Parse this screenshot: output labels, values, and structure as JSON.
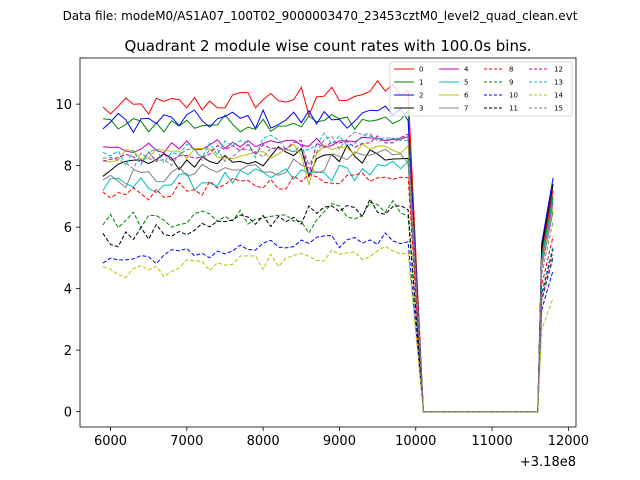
{
  "chart_data": {
    "type": "line",
    "suptitle": "Data file: modeM0/AS1A07_100T02_9000003470_23453cztM0_level2_quad_clean.evt",
    "title": "Quadrant 2 module wise count rates with 100.0s bins.",
    "xlabel": "",
    "ylabel": "",
    "x_offset_text": "+3.18e8",
    "xlim": [
      5600,
      12100
    ],
    "ylim": [
      -0.5,
      11.5
    ],
    "x_ticks": [
      6000,
      7000,
      8000,
      9000,
      10000,
      11000,
      12000
    ],
    "x_tick_labels": [
      "6000",
      "7000",
      "8000",
      "9000",
      "10000",
      "11000",
      "12000"
    ],
    "y_ticks": [
      0,
      2,
      4,
      6,
      8,
      10
    ],
    "y_tick_labels": [
      "0",
      "2",
      "4",
      "6",
      "8",
      "10"
    ],
    "legend_position": "top-right",
    "legend_columns": 4,
    "x_segments": [
      [
        5900,
        9900
      ],
      [
        10100,
        11600
      ],
      [
        11650,
        11800
      ]
    ],
    "series": [
      {
        "name": "0",
        "color": "#ff0000",
        "dash": "solid",
        "base": 9.8,
        "noise": 0.35,
        "trend": 0.7,
        "end": 7.2
      },
      {
        "name": "1",
        "color": "#008000",
        "dash": "solid",
        "base": 9.3,
        "noise": 0.3,
        "trend": 0.2,
        "end": 7.0
      },
      {
        "name": "2",
        "color": "#0000ff",
        "dash": "solid",
        "base": 9.4,
        "noise": 0.35,
        "trend": 0.2,
        "end": 7.6
      },
      {
        "name": "3",
        "color": "#000000",
        "dash": "solid",
        "base": 8.0,
        "noise": 0.35,
        "trend": 0.5,
        "end": 7.4
      },
      {
        "name": "4",
        "color": "#bf00bf",
        "dash": "solid",
        "base": 8.5,
        "noise": 0.2,
        "trend": 0.4,
        "end": 6.8
      },
      {
        "name": "5",
        "color": "#00bfbf",
        "dash": "solid",
        "base": 7.3,
        "noise": 0.3,
        "trend": 0.6,
        "end": 6.9
      },
      {
        "name": "6",
        "color": "#bfbf00",
        "dash": "solid",
        "base": 8.3,
        "noise": 0.25,
        "trend": 0.3,
        "end": 6.6
      },
      {
        "name": "7",
        "color": "#808080",
        "dash": "solid",
        "base": 7.5,
        "noise": 0.3,
        "trend": 0.8,
        "end": 6.5
      },
      {
        "name": "8",
        "color": "#ff0000",
        "dash": "dashed",
        "base": 7.0,
        "noise": 0.25,
        "trend": 0.8,
        "end": 5.7
      },
      {
        "name": "9",
        "color": "#008000",
        "dash": "dashed",
        "base": 6.2,
        "noise": 0.3,
        "trend": 0.4,
        "end": 5.0
      },
      {
        "name": "10",
        "color": "#0000ff",
        "dash": "dashed",
        "base": 4.9,
        "noise": 0.25,
        "trend": 0.8,
        "end": 4.6
      },
      {
        "name": "11",
        "color": "#000000",
        "dash": "dashed",
        "base": 5.6,
        "noise": 0.3,
        "trend": 1.2,
        "end": 5.3
      },
      {
        "name": "12",
        "color": "#bf00bf",
        "dash": "dashed",
        "base": 8.2,
        "noise": 0.2,
        "trend": 0.7,
        "end": 5.1
      },
      {
        "name": "13",
        "color": "#00bfbf",
        "dash": "dashed",
        "base": 8.2,
        "noise": 0.35,
        "trend": 0.8,
        "end": 5.4
      },
      {
        "name": "14",
        "color": "#bfbf00",
        "dash": "dashed",
        "base": 4.5,
        "noise": 0.25,
        "trend": 0.7,
        "end": 3.7
      },
      {
        "name": "15",
        "color": "#808080",
        "dash": "dashed",
        "base": 8.0,
        "noise": 0.3,
        "trend": 1.0,
        "end": 6.2
      }
    ]
  }
}
